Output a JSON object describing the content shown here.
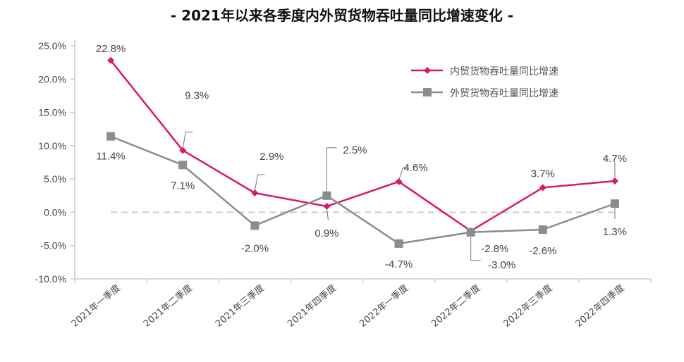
{
  "chart_data": {
    "type": "line",
    "title": "- 2021年以来各季度内外贸货物吞吐量同比增速变化 -",
    "categories": [
      "2021年一季度",
      "2021年二季度",
      "2021年三季度",
      "2021年四季度",
      "2022年一季度",
      "2022年二季度",
      "2022年三季度",
      "2022年四季度"
    ],
    "ylim": [
      -10,
      25
    ],
    "yticks": [
      "25.0%",
      "20.0%",
      "15.0%",
      "10.0%",
      "5.0%",
      "0.0%",
      "-5.0%",
      "-10.0%"
    ],
    "ytick_values": [
      25,
      20,
      15,
      10,
      5,
      0,
      -5,
      -10
    ],
    "grid": false,
    "zero_line": "dashed",
    "legend_position": "top-right",
    "series": [
      {
        "name": "内贸货物吞吐量同比增速",
        "color": "#d6186f",
        "marker": "diamond",
        "values": [
          22.8,
          9.3,
          2.9,
          0.9,
          4.6,
          -2.8,
          3.7,
          4.7
        ],
        "labels": [
          "22.8%",
          "9.3%",
          "2.9%",
          "0.9%",
          "4.6%",
          "-2.8%",
          "3.7%",
          "4.7%"
        ]
      },
      {
        "name": "外贸货物吞吐量同比增速",
        "color": "#8c8c8c",
        "marker": "square",
        "values": [
          11.4,
          7.1,
          -2.0,
          2.5,
          -4.7,
          -3.0,
          -2.6,
          1.3
        ],
        "labels": [
          "11.4%",
          "7.1%",
          "-2.0%",
          "2.5%",
          "-4.7%",
          "-3.0%",
          "-2.6%",
          "1.3%"
        ]
      }
    ]
  }
}
